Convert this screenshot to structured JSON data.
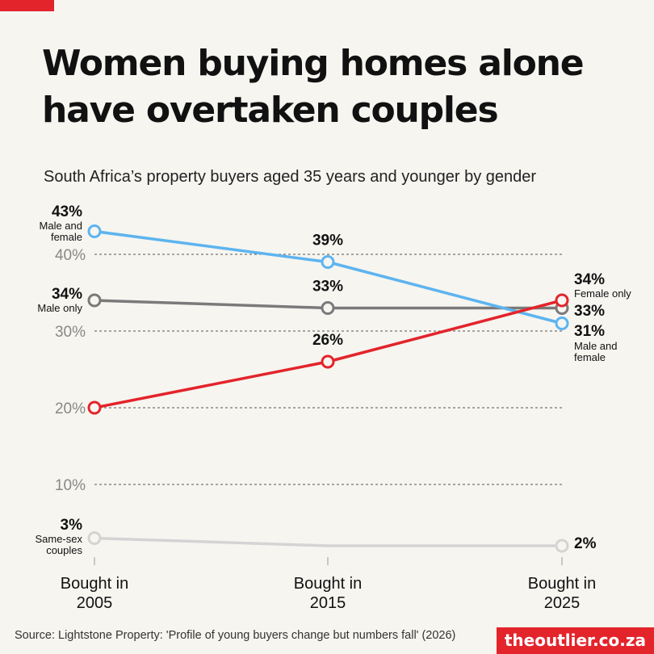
{
  "title_lines": [
    "Women buying homes alone",
    "have overtaken couples"
  ],
  "subtitle": "South Africa’s property buyers aged 35 years and younger by gender",
  "source": "Source: Lightstone Property: 'Profile of young buyers change but numbers fall' (2026)",
  "brand": "theoutlier.co.za",
  "colors": {
    "accent": "#e3242b",
    "male_and_female": "#5db4ef",
    "male_only": "#7a7a7a",
    "female_only": "#e3242b",
    "same_sex": "#d4d4d4",
    "background": "#f6f5f0"
  },
  "chart_data": {
    "type": "line",
    "categories": [
      [
        "Bought in",
        "2005"
      ],
      [
        "Bought in",
        "2015"
      ],
      [
        "Bought in",
        "2025"
      ]
    ],
    "y_ticks": [
      10,
      20,
      30,
      40
    ],
    "y_tick_labels": [
      "10%",
      "20%",
      "30%",
      "40%"
    ],
    "ylim": [
      0,
      45
    ],
    "grid": true,
    "series": [
      {
        "key": "male_and_female",
        "name": "Male and female",
        "values": [
          43,
          39,
          31
        ],
        "value_labels": [
          "43%",
          "39%",
          "31%"
        ],
        "start_label": [
          "Male and",
          "female"
        ],
        "end_label": [
          "Male and",
          "female"
        ]
      },
      {
        "key": "male_only",
        "name": "Male only",
        "values": [
          34,
          33,
          33
        ],
        "value_labels": [
          "34%",
          "33%",
          "33%"
        ],
        "start_label": [
          "Male only"
        ],
        "end_label": []
      },
      {
        "key": "female_only",
        "name": "Female only",
        "values": [
          20,
          26,
          34
        ],
        "value_labels": [
          "",
          "26%",
          "34%"
        ],
        "start_label": [],
        "end_label": [
          "Female only"
        ]
      },
      {
        "key": "same_sex",
        "name": "Same-sex couples",
        "values": [
          3,
          2,
          2
        ],
        "value_labels": [
          "3%",
          "",
          "2%"
        ],
        "start_label": [
          "Same-sex",
          "couples"
        ],
        "end_label": []
      }
    ]
  }
}
